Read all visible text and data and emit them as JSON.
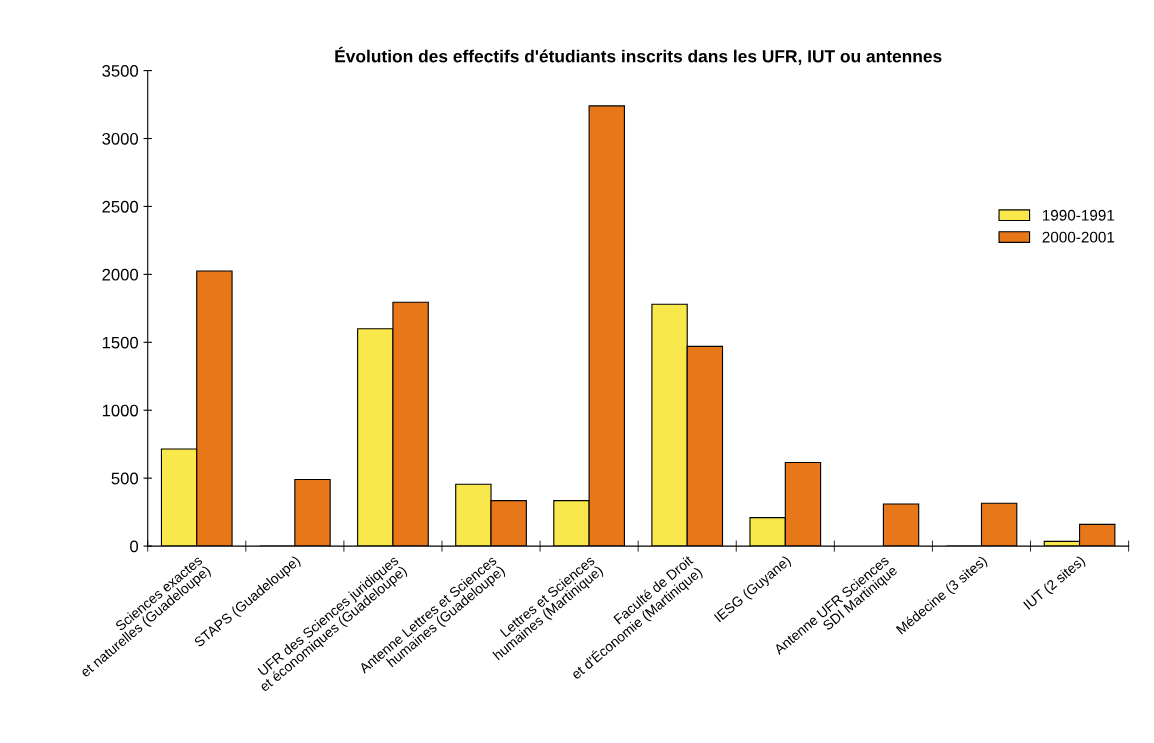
{
  "chart_data": {
    "type": "bar",
    "title": "Évolution des effectifs d'étudiants inscrits dans les UFR, IUT ou antennes",
    "categories": [
      "Sciences exactes\net naturelles (Guadeloupe)",
      "STAPS (Guadeloupe)",
      "UFR des Sciences juridiques\net économiques (Guadeloupe)",
      "Antenne Lettres et Sciences\nhumaines (Guadeloupe)",
      "Lettres et Sciences\nhumaines (Martinique)",
      "Faculté de Droit\net d'Économie (Martinique)",
      "IESG (Guyane)",
      "Antenne UFR Sciences\nSDI Martinique",
      "Médecine (3 sites)",
      "IUT (2 sites)"
    ],
    "series": [
      {
        "name": "1990-1991",
        "color": "#f9e84b",
        "values": [
          715,
          0,
          1600,
          455,
          335,
          1780,
          210,
          null,
          0,
          35
        ]
      },
      {
        "name": "2000-2001",
        "color": "#e8771a",
        "values": [
          2025,
          490,
          1795,
          335,
          3240,
          1470,
          615,
          310,
          315,
          160
        ]
      }
    ],
    "ylim": [
      0,
      3500
    ],
    "yticks": [
      0,
      500,
      1000,
      1500,
      2000,
      2500,
      3000,
      3500
    ],
    "grid": false,
    "legend": "right"
  }
}
